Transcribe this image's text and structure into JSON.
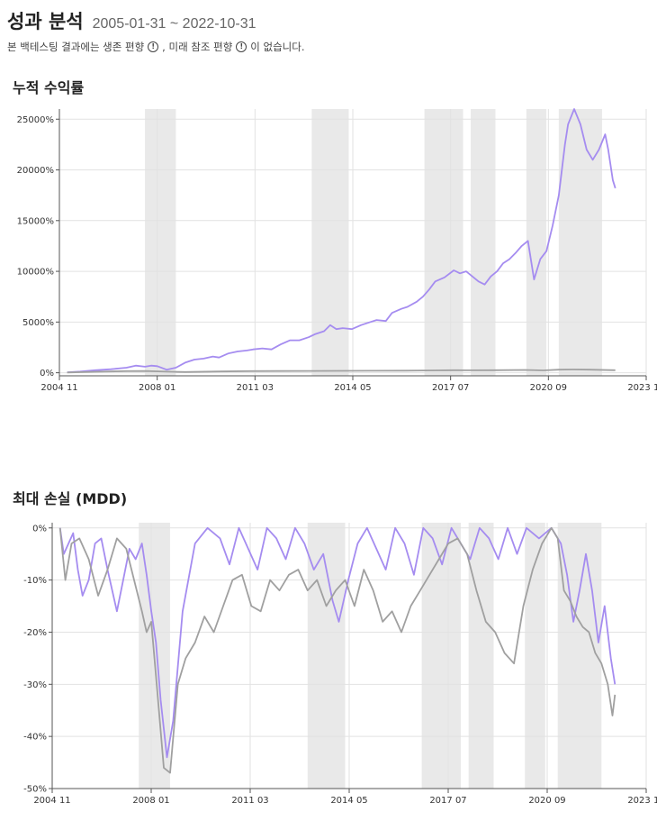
{
  "header": {
    "title": "성과 분석",
    "date_range": "2005-01-31 ~ 2022-10-31",
    "disclaimer_parts": [
      "본 백테스팅 결과에는 생존 편향",
      ", 미래 참조 편향",
      "이 없습니다."
    ],
    "info_icon": "info-circle-icon"
  },
  "colors": {
    "strategy": "#a58cf0",
    "benchmark": "#a0a0a0",
    "shade": "#e9e9e9",
    "grid": "#e2e2e2"
  },
  "chart_data": [
    {
      "type": "line",
      "title": "누적 수익률",
      "x_tick_labels": [
        "2004 11",
        "2008 01",
        "2011 03",
        "2014 05",
        "2017 07",
        "2020 09",
        "2023 11"
      ],
      "xlim": [
        2004.83,
        2023.83
      ],
      "ylim": [
        -300,
        26000
      ],
      "y_ticks": [
        0,
        5000,
        10000,
        15000,
        20000,
        25000
      ],
      "y_tick_labels": [
        "0%",
        "5000%",
        "10000%",
        "15000%",
        "20000%",
        "25000%"
      ],
      "shaded_periods": [
        [
          2007.6,
          2008.6
        ],
        [
          2013.0,
          2014.2
        ],
        [
          2016.65,
          2017.9
        ],
        [
          2018.15,
          2018.95
        ],
        [
          2019.95,
          2020.6
        ],
        [
          2021.0,
          2022.4
        ]
      ],
      "series": [
        {
          "color": "#a58cf0",
          "x": [
            2005.08,
            2005.5,
            2006.0,
            2006.5,
            2007.0,
            2007.3,
            2007.6,
            2007.8,
            2008.0,
            2008.3,
            2008.6,
            2008.9,
            2009.2,
            2009.5,
            2009.8,
            2010.0,
            2010.3,
            2010.6,
            2010.9,
            2011.1,
            2011.4,
            2011.7,
            2012.0,
            2012.3,
            2012.6,
            2012.9,
            2013.1,
            2013.4,
            2013.6,
            2013.8,
            2014.0,
            2014.3,
            2014.6,
            2014.9,
            2015.1,
            2015.4,
            2015.6,
            2015.9,
            2016.1,
            2016.4,
            2016.6,
            2016.8,
            2017.0,
            2017.3,
            2017.6,
            2017.8,
            2018.0,
            2018.2,
            2018.4,
            2018.6,
            2018.8,
            2019.0,
            2019.2,
            2019.4,
            2019.6,
            2019.8,
            2020.0,
            2020.2,
            2020.4,
            2020.6,
            2020.8,
            2021.0,
            2021.1,
            2021.2,
            2021.3,
            2021.5,
            2021.7,
            2021.9,
            2022.1,
            2022.3,
            2022.5,
            2022.6,
            2022.75,
            2022.83
          ],
          "y": [
            50,
            120,
            250,
            350,
            500,
            700,
            600,
            700,
            650,
            300,
            500,
            1000,
            1300,
            1400,
            1600,
            1500,
            1900,
            2100,
            2200,
            2300,
            2400,
            2300,
            2800,
            3200,
            3200,
            3500,
            3800,
            4100,
            4700,
            4300,
            4400,
            4300,
            4700,
            5000,
            5200,
            5100,
            5900,
            6300,
            6500,
            7000,
            7500,
            8200,
            9000,
            9400,
            10100,
            9800,
            10000,
            9500,
            9000,
            8700,
            9500,
            10000,
            10800,
            11200,
            11800,
            12500,
            13000,
            9200,
            11200,
            12000,
            14500,
            17500,
            20000,
            22500,
            24500,
            26000,
            24500,
            22000,
            21000,
            22000,
            23500,
            22000,
            19000,
            18200
          ]
        },
        {
          "color": "#a0a0a0",
          "x": [
            2005.08,
            2006.0,
            2007.0,
            2007.6,
            2008.3,
            2008.9,
            2010.0,
            2011.0,
            2012.0,
            2013.0,
            2014.0,
            2015.0,
            2016.0,
            2017.0,
            2017.6,
            2018.0,
            2018.9,
            2019.9,
            2020.5,
            2021.0,
            2021.5,
            2022.0,
            2022.83
          ],
          "y": [
            30,
            100,
            160,
            170,
            110,
            70,
            130,
            160,
            170,
            180,
            190,
            200,
            210,
            230,
            250,
            240,
            250,
            280,
            230,
            300,
            320,
            300,
            250
          ]
        }
      ]
    },
    {
      "type": "line",
      "title": "최대 손실 (MDD)",
      "x_tick_labels": [
        "2004 11",
        "2008 01",
        "2011 03",
        "2014 05",
        "2017 07",
        "2020 09",
        "2023 11"
      ],
      "xlim": [
        2004.83,
        2023.83
      ],
      "ylim": [
        -50,
        1
      ],
      "y_ticks": [
        0,
        -10,
        -20,
        -30,
        -40,
        -50
      ],
      "y_tick_labels": [
        "0%",
        "-10%",
        "-20%",
        "-30%",
        "-40%",
        "-50%"
      ],
      "shaded_periods": [
        [
          2007.6,
          2008.6
        ],
        [
          2013.0,
          2014.2
        ],
        [
          2016.65,
          2017.9
        ],
        [
          2018.15,
          2018.95
        ],
        [
          2019.95,
          2020.6
        ],
        [
          2021.0,
          2022.4
        ]
      ],
      "series": [
        {
          "color": "#a58cf0",
          "x": [
            2005.08,
            2005.2,
            2005.35,
            2005.5,
            2005.65,
            2005.8,
            2006.0,
            2006.2,
            2006.4,
            2006.6,
            2006.9,
            2007.1,
            2007.3,
            2007.5,
            2007.7,
            2007.85,
            2008.0,
            2008.15,
            2008.3,
            2008.5,
            2008.7,
            2009.0,
            2009.4,
            2009.8,
            2010.2,
            2010.5,
            2010.8,
            2011.1,
            2011.4,
            2011.7,
            2012.0,
            2012.3,
            2012.6,
            2012.9,
            2013.2,
            2013.5,
            2013.8,
            2014.0,
            2014.3,
            2014.6,
            2014.9,
            2015.2,
            2015.5,
            2015.8,
            2016.1,
            2016.4,
            2016.7,
            2017.0,
            2017.3,
            2017.6,
            2017.9,
            2018.2,
            2018.5,
            2018.8,
            2019.1,
            2019.4,
            2019.7,
            2020.0,
            2020.4,
            2020.8,
            2021.1,
            2021.3,
            2021.5,
            2021.7,
            2021.9,
            2022.1,
            2022.3,
            2022.5,
            2022.7,
            2022.83
          ],
          "y": [
            0,
            -5,
            -3,
            -1,
            -8,
            -13,
            -10,
            -3,
            -2,
            -8,
            -16,
            -10,
            -4,
            -6,
            -3,
            -9,
            -16,
            -22,
            -33,
            -44,
            -37,
            -16,
            -3,
            0,
            -2,
            -7,
            0,
            -4,
            -8,
            0,
            -2,
            -6,
            0,
            -3,
            -8,
            -5,
            -14,
            -18,
            -10,
            -3,
            0,
            -4,
            -8,
            0,
            -3,
            -9,
            0,
            -2,
            -7,
            0,
            -3,
            -6,
            0,
            -2,
            -6,
            0,
            -5,
            0,
            -2,
            0,
            -3,
            -9,
            -18,
            -12,
            -5,
            -12,
            -22,
            -15,
            -25,
            -30
          ]
        },
        {
          "color": "#a0a0a0",
          "x": [
            2005.08,
            2005.25,
            2005.45,
            2005.7,
            2006.0,
            2006.3,
            2006.6,
            2006.9,
            2007.2,
            2007.45,
            2007.7,
            2007.85,
            2008.0,
            2008.2,
            2008.4,
            2008.6,
            2008.85,
            2009.1,
            2009.4,
            2009.7,
            2010.0,
            2010.3,
            2010.6,
            2010.9,
            2011.2,
            2011.5,
            2011.8,
            2012.1,
            2012.4,
            2012.7,
            2013.0,
            2013.3,
            2013.6,
            2013.9,
            2014.2,
            2014.5,
            2014.8,
            2015.1,
            2015.4,
            2015.7,
            2016.0,
            2016.3,
            2016.6,
            2016.9,
            2017.2,
            2017.5,
            2017.8,
            2018.1,
            2018.4,
            2018.7,
            2019.0,
            2019.3,
            2019.6,
            2019.9,
            2020.2,
            2020.5,
            2020.8,
            2021.0,
            2021.2,
            2021.4,
            2021.6,
            2021.8,
            2022.0,
            2022.2,
            2022.4,
            2022.6,
            2022.75,
            2022.83
          ],
          "y": [
            0,
            -10,
            -3,
            -2,
            -6,
            -13,
            -8,
            -2,
            -4,
            -10,
            -16,
            -20,
            -18,
            -32,
            -46,
            -47,
            -30,
            -25,
            -22,
            -17,
            -20,
            -15,
            -10,
            -9,
            -15,
            -16,
            -10,
            -12,
            -9,
            -8,
            -12,
            -10,
            -15,
            -12,
            -10,
            -15,
            -8,
            -12,
            -18,
            -16,
            -20,
            -15,
            -12,
            -9,
            -6,
            -3,
            -2,
            -5,
            -12,
            -18,
            -20,
            -24,
            -26,
            -15,
            -8,
            -3,
            0,
            -2,
            -12,
            -14,
            -17,
            -19,
            -20,
            -24,
            -26,
            -30,
            -36,
            -32
          ]
        }
      ]
    }
  ]
}
